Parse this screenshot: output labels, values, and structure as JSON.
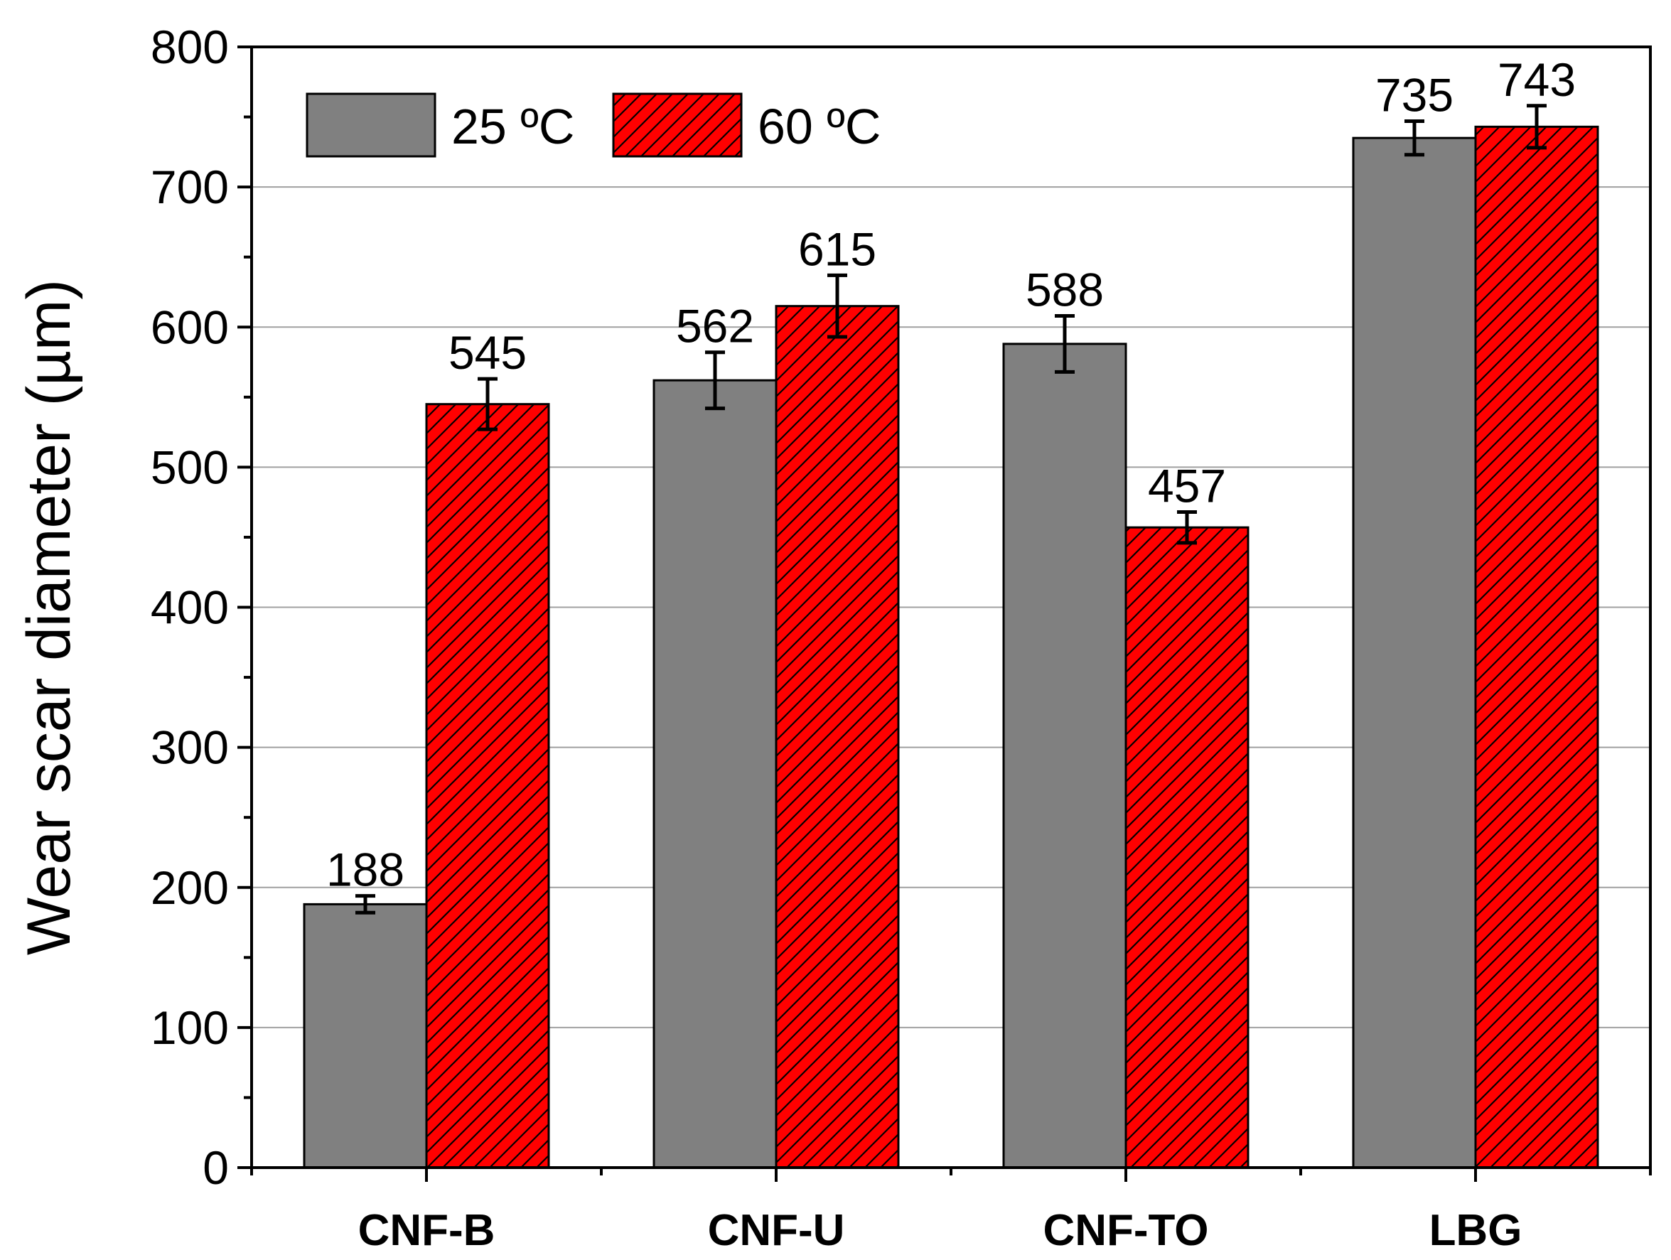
{
  "chart_data": {
    "type": "bar",
    "categories": [
      "CNF-B",
      "CNF-U",
      "CNF-TO",
      "LBG"
    ],
    "series": [
      {
        "name": "25 ºC",
        "values": [
          188,
          562,
          588,
          735
        ],
        "errors": [
          6,
          20,
          20,
          12
        ],
        "color": "#808080",
        "pattern": "solid"
      },
      {
        "name": "60 ºC",
        "values": [
          545,
          615,
          457,
          743
        ],
        "errors": [
          18,
          22,
          11,
          15
        ],
        "color": "#ff0000",
        "pattern": "hatched"
      }
    ],
    "data_labels": [
      [
        "188",
        "562",
        "588",
        "735"
      ],
      [
        "545",
        "615",
        "457",
        "743"
      ]
    ],
    "xlabel": "",
    "ylabel": "Wear scar diameter (µm)",
    "ylim": [
      0,
      800
    ],
    "yticks": [
      0,
      100,
      200,
      300,
      400,
      500,
      600,
      700,
      800
    ],
    "grid": true,
    "legend_position": "top-left"
  }
}
